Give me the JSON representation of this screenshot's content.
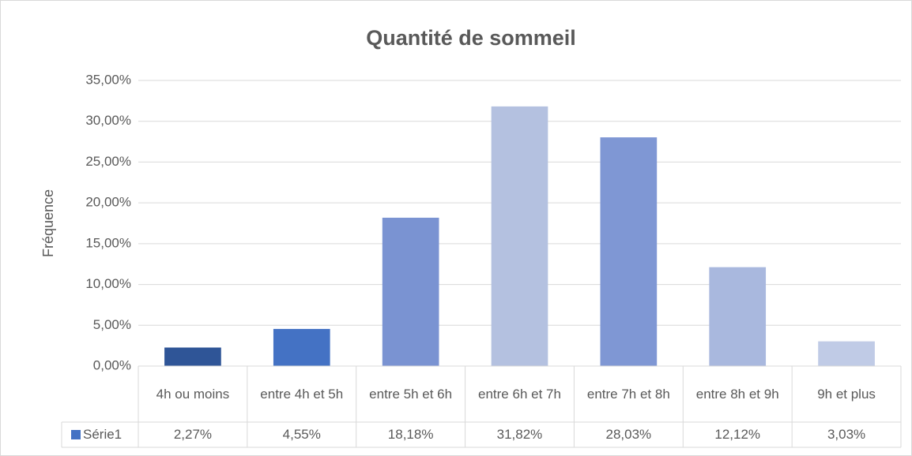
{
  "chart_data": {
    "type": "bar",
    "title": "Quantité de sommeil",
    "y_label": "Fréquence",
    "categories": [
      "4h ou moins",
      "entre 4h et 5h",
      "entre 5h et 6h",
      "entre 6h et 7h",
      "entre 7h et 8h",
      "entre 8h et 9h",
      "9h et plus"
    ],
    "series": [
      {
        "name": "Série1",
        "color": "#4472c4",
        "colors": [
          "#2f5597",
          "#4472c4",
          "#7a93d2",
          "#b4c1e0",
          "#7f97d4",
          "#a9b8de",
          "#c0cbe6"
        ],
        "values": [
          2.27,
          4.55,
          18.18,
          31.82,
          28.03,
          12.12,
          3.03
        ],
        "value_labels": [
          "2,27%",
          "4,55%",
          "18,18%",
          "31,82%",
          "28,03%",
          "12,12%",
          "3,03%"
        ]
      }
    ],
    "ylim": [
      0,
      35
    ],
    "yticks": [
      {
        "value": 0,
        "label": "0,00%"
      },
      {
        "value": 5,
        "label": "5,00%"
      },
      {
        "value": 10,
        "label": "10,00%"
      },
      {
        "value": 15,
        "label": "15,00%"
      },
      {
        "value": 20,
        "label": "20,00%"
      },
      {
        "value": 25,
        "label": "25,00%"
      },
      {
        "value": 30,
        "label": "30,00%"
      },
      {
        "value": 35,
        "label": "35,00%"
      }
    ],
    "grid": true
  }
}
